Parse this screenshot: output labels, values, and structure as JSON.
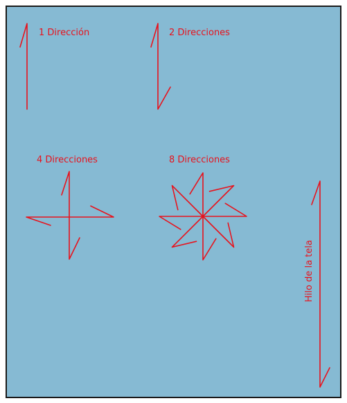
{
  "colors": {
    "background": "#86bad3",
    "border": "#1a1a1a",
    "arrow": "#e8121c",
    "text": "#e8121c"
  },
  "labels": {
    "one_direction": "1 Dirección",
    "two_directions": "2 Direcciones",
    "four_directions": "4 Direcciones",
    "eight_directions": "8 Direcciones",
    "grain_line": "Hilo de la tela"
  },
  "direction_counts": {
    "one_direction": 1,
    "two_directions": 2,
    "four_directions": 4,
    "eight_directions": 8
  }
}
